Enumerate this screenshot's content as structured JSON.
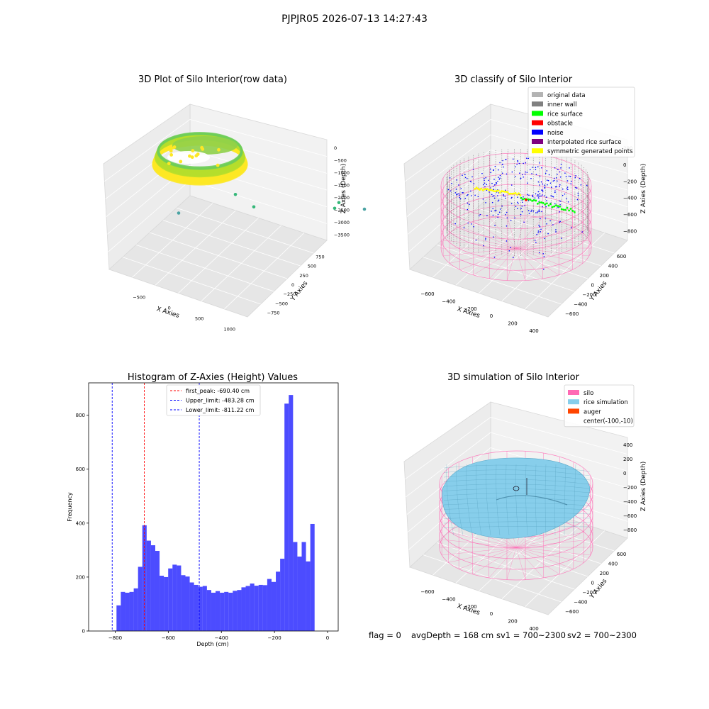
{
  "figure": {
    "suptitle": "PJPJR05 2026-07-13 14:27:43",
    "footer": {
      "flag": "flag = 0",
      "avg": "avgDepth = 168 cm",
      "sv1": "sv1 = 700~2300",
      "sv2": "sv2 = 700~2300"
    }
  },
  "chart_data": [
    {
      "type": "scatter",
      "title": "3D Plot of Silo Interior(row data)",
      "xlabel": "X Axies",
      "ylabel": "Y Axies",
      "zlabel": "Z Axies (Depth)",
      "x_ticks": [
        "−500",
        "0",
        "500",
        "1000"
      ],
      "y_ticks": [
        "750",
        "500",
        "250",
        "0",
        "−250",
        "−500",
        "−750"
      ],
      "z_ticks": [
        "0",
        "−500",
        "−1000",
        "−1500",
        "−2000",
        "−2500",
        "−3000",
        "−3500"
      ],
      "colormap": [
        "#fde725",
        "#b5de2b",
        "#6ece58",
        "#35b779",
        "#1f9e89"
      ],
      "outliers": [
        {
          "x": 900,
          "y": -100,
          "z": -2450
        },
        {
          "x": 1050,
          "y": 200,
          "z": -2250
        },
        {
          "x": 400,
          "y": 300,
          "z": -2050
        },
        {
          "x": -200,
          "y": -400,
          "z": -2550
        },
        {
          "x": -700,
          "y": -400,
          "z": -3300
        },
        {
          "x": 1000,
          "y": -300,
          "z": -3000
        }
      ]
    },
    {
      "type": "scatter",
      "title": "3D classify of Silo Interior",
      "xlabel": "X Axies",
      "ylabel": "Y Axies",
      "zlabel": "Z Axies (Depth)",
      "x_ticks": [
        "−600",
        "−400",
        "−200",
        "0",
        "200",
        "400"
      ],
      "y_ticks": [
        "600",
        "400",
        "200",
        "0",
        "−200",
        "−400",
        "−600"
      ],
      "z_ticks": [
        "200",
        "0",
        "−200",
        "−400",
        "−600",
        "−800"
      ],
      "legend": [
        {
          "label": "original data",
          "color": "#b3b3b3"
        },
        {
          "label": "inner wall",
          "color": "#808080"
        },
        {
          "label": "rice surface",
          "color": "#00ff00"
        },
        {
          "label": "obstacle",
          "color": "#ff0000"
        },
        {
          "label": "noise",
          "color": "#0000ff"
        },
        {
          "label": "interpolated rice surface",
          "color": "#800080"
        },
        {
          "label": "symmetric generated points",
          "color": "#ffff00"
        }
      ],
      "legend_loc": "upper right",
      "silo_color": "#ff69b4"
    },
    {
      "type": "bar",
      "title": "Histogram of Z-Axies (Height) Values",
      "xlabel": "Depth (cm)",
      "ylabel": "Frequency",
      "xlim": [
        -900,
        40
      ],
      "ylim": [
        0,
        920
      ],
      "bin_start": -811.22,
      "bin_width": 16.22,
      "values": [
        2,
        95,
        145,
        142,
        145,
        158,
        238,
        392,
        335,
        318,
        297,
        205,
        200,
        232,
        246,
        243,
        207,
        202,
        180,
        171,
        164,
        167,
        152,
        142,
        148,
        142,
        145,
        142,
        149,
        152,
        162,
        167,
        176,
        168,
        171,
        170,
        193,
        182,
        220,
        268,
        843,
        875,
        330,
        276,
        330,
        258,
        397
      ],
      "bar_color": "#0000ff",
      "x_ticks": [
        -800,
        -600,
        -400,
        -200,
        0
      ],
      "x_tick_labels": [
        "−800",
        "−600",
        "−400",
        "−200",
        "0"
      ],
      "y_ticks": [
        0,
        200,
        400,
        600,
        800
      ],
      "y_tick_labels": [
        "0",
        "200",
        "400",
        "600",
        "800"
      ],
      "vlines": [
        {
          "x": -690.4,
          "color": "#ff0000",
          "label": "first_peak: -690.40 cm"
        },
        {
          "x": -483.28,
          "color": "#0000ff",
          "label": "Upper_limit: -483.28 cm"
        },
        {
          "x": -811.22,
          "color": "#0000ff",
          "label": "Lower_limit: -811.22 cm"
        }
      ],
      "legend_loc": "upper center"
    },
    {
      "type": "area",
      "title": "3D simulation of Silo Interior",
      "xlabel": "X Axies",
      "ylabel": "Y Axies",
      "zlabel": "Z Axies (Depth)",
      "x_ticks": [
        "−600",
        "−400",
        "−200",
        "0",
        "200",
        "400"
      ],
      "y_ticks": [
        "600",
        "400",
        "200",
        "0",
        "−200",
        "−400",
        "−600"
      ],
      "z_ticks": [
        "400",
        "200",
        "0",
        "−200",
        "−400",
        "−600",
        "−800"
      ],
      "legend": [
        {
          "label": "silo",
          "color": "#ff69b4"
        },
        {
          "label": "rice simulation",
          "color": "#87ceeb"
        },
        {
          "label": "auger",
          "color": "#ff4500"
        },
        {
          "label": "center(-100,-10)",
          "color": ""
        }
      ],
      "legend_loc": "upper right"
    }
  ]
}
